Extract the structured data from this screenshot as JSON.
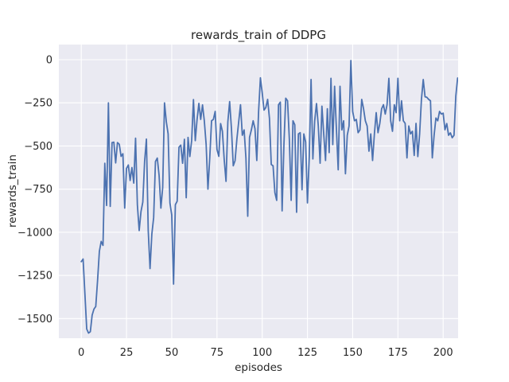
{
  "chart_data": {
    "type": "line",
    "title": "rewards_train of DDPG",
    "xlabel": "episodes",
    "ylabel": "rewards_train",
    "legend_position": "none",
    "grid": true,
    "style": "seaborn-darkgrid",
    "colors": {
      "line": "#4c72b0",
      "axes_background": "#eaeaf2",
      "figure_background": "#ffffff",
      "gridline": "#ffffff",
      "text": "#262626"
    },
    "xticks": [
      0,
      25,
      50,
      75,
      100,
      125,
      150,
      175,
      200
    ],
    "xtick_labels": [
      "0",
      "25",
      "50",
      "75",
      "100",
      "125",
      "150",
      "175",
      "200"
    ],
    "yticks": [
      0,
      -250,
      -500,
      -750,
      -1000,
      -1250,
      -1500
    ],
    "ytick_labels": [
      "0",
      "−250",
      "−500",
      "−750",
      "−1000",
      "−1250",
      "−1500"
    ],
    "xlim": [
      -12.4,
      208.5
    ],
    "ylim": [
      -1615,
      88
    ],
    "x_start": 0,
    "x_step": 1,
    "x_is_episode_index": true,
    "values": [
      -1170,
      -1155,
      -1355,
      -1560,
      -1584,
      -1576,
      -1480,
      -1445,
      -1430,
      -1280,
      -1110,
      -1053,
      -1076,
      -600,
      -845,
      -250,
      -850,
      -480,
      -478,
      -598,
      -480,
      -490,
      -560,
      -545,
      -860,
      -630,
      -610,
      -700,
      -625,
      -715,
      -455,
      -840,
      -990,
      -880,
      -825,
      -590,
      -460,
      -990,
      -1210,
      -1010,
      -915,
      -590,
      -570,
      -670,
      -860,
      -740,
      -250,
      -360,
      -430,
      -830,
      -900,
      -1300,
      -840,
      -820,
      -507,
      -495,
      -600,
      -461,
      -800,
      -450,
      -561,
      -469,
      -231,
      -469,
      -346,
      -253,
      -346,
      -262,
      -354,
      -490,
      -750,
      -570,
      -354,
      -346,
      -300,
      -520,
      -560,
      -370,
      -415,
      -580,
      -705,
      -360,
      -243,
      -400,
      -615,
      -585,
      -460,
      -360,
      -261,
      -438,
      -407,
      -570,
      -907,
      -450,
      -407,
      -354,
      -400,
      -584,
      -300,
      -105,
      -192,
      -292,
      -277,
      -230,
      -340,
      -607,
      -615,
      -770,
      -815,
      -261,
      -246,
      -876,
      -492,
      -223,
      -238,
      -461,
      -815,
      -354,
      -377,
      -884,
      -430,
      -423,
      -754,
      -430,
      -477,
      -830,
      -565,
      -115,
      -575,
      -355,
      -254,
      -384,
      -600,
      -269,
      -430,
      -584,
      -284,
      -538,
      -108,
      -492,
      -154,
      -400,
      -638,
      -154,
      -407,
      -354,
      -661,
      -438,
      -384,
      -5,
      -300,
      -354,
      -346,
      -423,
      -407,
      -230,
      -284,
      -354,
      -384,
      -530,
      -430,
      -584,
      -430,
      -307,
      -423,
      -369,
      -284,
      -261,
      -315,
      -261,
      -108,
      -354,
      -415,
      -261,
      -307,
      -108,
      -354,
      -238,
      -354,
      -369,
      -569,
      -384,
      -430,
      -415,
      -555,
      -369,
      -561,
      -430,
      -230,
      -115,
      -215,
      -218,
      -230,
      -238,
      -569,
      -438,
      -338,
      -354,
      -300,
      -315,
      -310,
      -406,
      -370,
      -438,
      -424,
      -452,
      -438,
      -210,
      -106
    ]
  }
}
